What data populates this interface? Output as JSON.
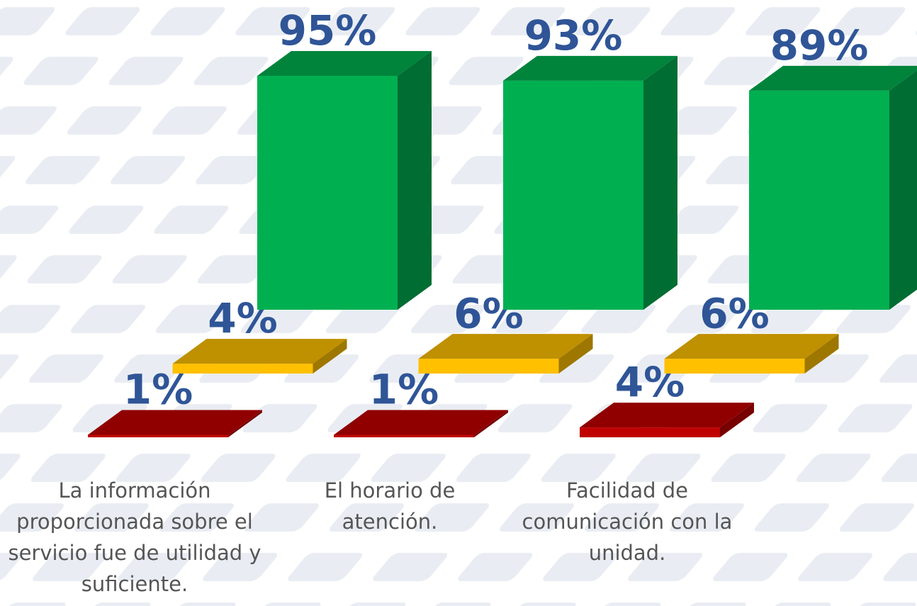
{
  "chart_data": {
    "type": "bar3d",
    "categories": [
      "La información proporcionada sobre el servicio fue de utilidad y suficiente.",
      "El horario de atención.",
      "Facilidad de comunicación con la unidad."
    ],
    "series": [
      {
        "color": "#c00000",
        "values": [
          1,
          1,
          4
        ],
        "value_labels": [
          "1%",
          "1%",
          "4%"
        ]
      },
      {
        "color": "#ffc000",
        "values": [
          4,
          6,
          6
        ],
        "value_labels": [
          "4%",
          "6%",
          "6%"
        ]
      },
      {
        "color": "#00b050",
        "values": [
          95,
          93,
          89
        ],
        "value_labels": [
          "95%",
          "93%",
          "89%"
        ]
      }
    ],
    "ylim": [
      0,
      100
    ]
  }
}
